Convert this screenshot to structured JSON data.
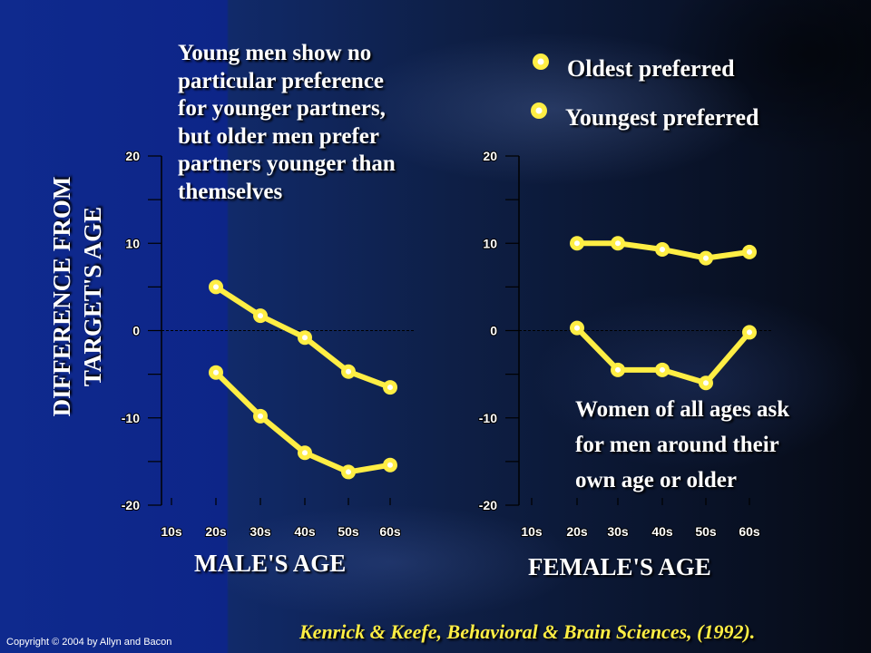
{
  "annotation_men": [
    "Young men show no",
    "particular preference",
    "for younger partners,",
    "but older men prefer",
    "partners younger than",
    "themselves"
  ],
  "annotation_women": [
    "Women of all ages ask",
    "for men around their",
    "own age or older"
  ],
  "legend": {
    "oldest": "Oldest preferred",
    "youngest": "Youngest preferred"
  },
  "ylabel": [
    "DIFFERENCE FROM",
    "TARGET'S AGE"
  ],
  "xlabel_male": "MALE'S AGE",
  "xlabel_female": "FEMALE'S AGE",
  "copyright": "Copyright © 2004 by Allyn and Bacon",
  "citation": "Kenrick & Keefe, Behavioral & Brain Sciences, (1992).",
  "colors": {
    "series": "#ffee44",
    "marker_fill": "#ffffff",
    "text": "#ffffff",
    "citation": "#ffee44"
  },
  "chart_data": [
    {
      "type": "line",
      "xlabel": "MALE'S AGE",
      "categories": [
        "10s",
        "20s",
        "30s",
        "40s",
        "50s",
        "60s"
      ],
      "yticks": [
        "20",
        "10",
        "0",
        "-10",
        "-20"
      ],
      "ylim": [
        -20,
        20
      ],
      "series": [
        {
          "name": "Oldest preferred",
          "values": [
            null,
            5,
            1.7,
            -0.8,
            -4.7,
            -6.5
          ]
        },
        {
          "name": "Youngest preferred",
          "values": [
            null,
            -4.8,
            -9.8,
            -14,
            -16.2,
            -15.4
          ]
        }
      ]
    },
    {
      "type": "line",
      "xlabel": "FEMALE'S AGE",
      "categories": [
        "10s",
        "20s",
        "30s",
        "40s",
        "50s",
        "60s"
      ],
      "yticks": [
        "20",
        "10",
        "0",
        "-10",
        "-20"
      ],
      "ylim": [
        -20,
        20
      ],
      "series": [
        {
          "name": "Oldest preferred",
          "values": [
            null,
            10,
            10,
            9.3,
            8.3,
            9
          ]
        },
        {
          "name": "Youngest preferred",
          "values": [
            null,
            0.3,
            -4.5,
            -4.5,
            -6,
            -0.2
          ]
        }
      ]
    }
  ]
}
